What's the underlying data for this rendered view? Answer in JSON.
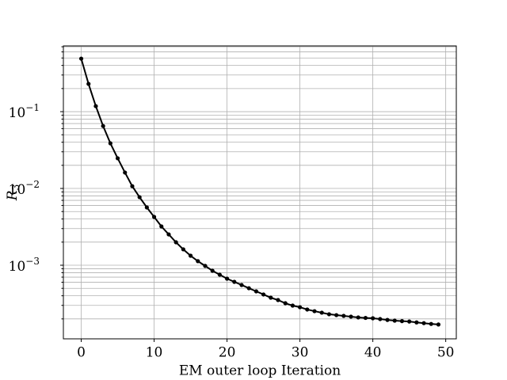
{
  "chart_data": {
    "type": "line",
    "log_y": true,
    "grid": true,
    "xlabel": "EM outer loop Iteration",
    "ylabel": "R",
    "ylabel_subscript": "3",
    "x": [
      0,
      1,
      2,
      3,
      4,
      5,
      6,
      7,
      8,
      9,
      10,
      11,
      12,
      13,
      14,
      15,
      16,
      17,
      18,
      19,
      20,
      21,
      22,
      23,
      24,
      25,
      26,
      27,
      28,
      29,
      30,
      31,
      32,
      33,
      34,
      35,
      36,
      37,
      38,
      39,
      40,
      41,
      42,
      43,
      44,
      45,
      46,
      47,
      48,
      49
    ],
    "series": [
      {
        "color": "#000000",
        "values": [
          0.49,
          0.23,
          0.118,
          0.065,
          0.0387,
          0.0247,
          0.0161,
          0.0107,
          0.0077,
          0.00566,
          0.00426,
          0.0032,
          0.00252,
          0.00199,
          0.00161,
          0.00133,
          0.00113,
          0.00098,
          0.000847,
          0.000752,
          0.000668,
          0.000608,
          0.000553,
          0.000502,
          0.000457,
          0.000416,
          0.000378,
          0.000352,
          0.00032,
          0.000298,
          0.000284,
          0.000265,
          0.000252,
          0.000241,
          0.00023,
          0.000224,
          0.000219,
          0.000214,
          0.000209,
          0.000206,
          0.000204,
          0.000199,
          0.000194,
          0.00019,
          0.000187,
          0.000185,
          0.00018,
          0.000176,
          0.000172,
          0.000169
        ]
      }
    ],
    "xlim": [
      -2.45,
      51.45
    ],
    "xticks": [
      0,
      10,
      20,
      30,
      40,
      50
    ],
    "ylim": [
      0.00011,
      0.718
    ],
    "yticks": [
      {
        "value": 0.001,
        "label": "10",
        "exponent": "−3"
      },
      {
        "value": 0.01,
        "label": "10",
        "exponent": "−2"
      },
      {
        "value": 0.1,
        "label": "10",
        "exponent": "−1"
      }
    ],
    "yminor": [
      0.0002,
      0.0003,
      0.0004,
      0.0005,
      0.0006,
      0.0007,
      0.0008,
      0.0009,
      0.002,
      0.003,
      0.004,
      0.005,
      0.006,
      0.007,
      0.008,
      0.009,
      0.02,
      0.03,
      0.04,
      0.05,
      0.06,
      0.07,
      0.08,
      0.09,
      0.2,
      0.3,
      0.4,
      0.5,
      0.6,
      0.7
    ]
  }
}
